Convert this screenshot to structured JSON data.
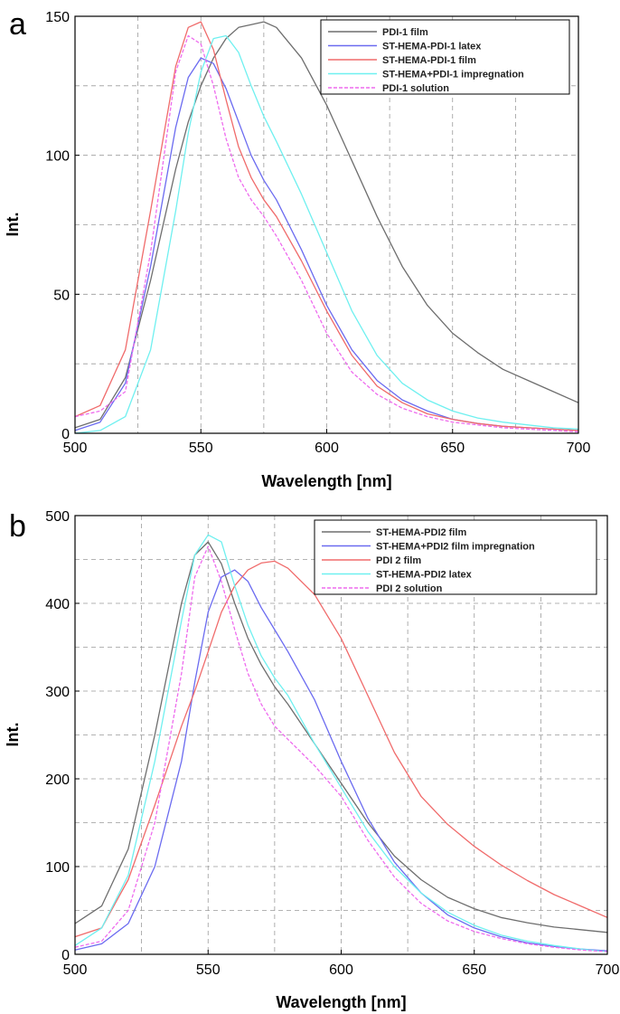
{
  "chart_data": [
    {
      "type": "line",
      "panel_label": "a",
      "xlabel": "Wavelength [nm]",
      "ylabel": "Int.",
      "xlim": [
        500,
        700
      ],
      "ylim": [
        0,
        150
      ],
      "xticks": [
        500,
        550,
        600,
        650,
        700
      ],
      "yticks": [
        0,
        50,
        100,
        150
      ],
      "grid": true,
      "legend_position": "top-right",
      "x": [
        500,
        510,
        520,
        530,
        540,
        545,
        550,
        555,
        560,
        565,
        570,
        575,
        580,
        590,
        600,
        610,
        620,
        630,
        640,
        650,
        660,
        670,
        680,
        690,
        700
      ],
      "series": [
        {
          "name": "PDI-1 film",
          "color": "#6e6e6e",
          "dash": false,
          "values": [
            2,
            5,
            20,
            55,
            95,
            112,
            125,
            135,
            142,
            146,
            147,
            148,
            146,
            135,
            118,
            98,
            78,
            60,
            46,
            36,
            29,
            23,
            19,
            15,
            11
          ]
        },
        {
          "name": "ST-HEMA-PDI-1 latex",
          "color": "#6b6bf0",
          "dash": false,
          "values": [
            1,
            4,
            18,
            60,
            110,
            128,
            135,
            133,
            124,
            112,
            100,
            91,
            84,
            66,
            46,
            30,
            19,
            12,
            8,
            5,
            3.5,
            2.5,
            2,
            1.5,
            1
          ]
        },
        {
          "name": "ST-HEMA-PDI-1 film",
          "color": "#f06b6b",
          "dash": false,
          "values": [
            6,
            10,
            30,
            80,
            132,
            146,
            148,
            138,
            120,
            103,
            92,
            84,
            78,
            62,
            44,
            28,
            17,
            11,
            7,
            5,
            3.5,
            2.5,
            2,
            1.5,
            1
          ]
        },
        {
          "name": "ST-HEMA+PDI-1 impregnation",
          "color": "#6ff0f0",
          "dash": false,
          "values": [
            0,
            1,
            6,
            30,
            80,
            108,
            130,
            142,
            143,
            137,
            125,
            114,
            105,
            86,
            65,
            44,
            28,
            18,
            12,
            8,
            5.5,
            4,
            3,
            2,
            1.5
          ]
        },
        {
          "name": "PDI-1 solution",
          "color": "#ee6bee",
          "dash": true,
          "values": [
            6,
            8,
            15,
            65,
            130,
            143,
            140,
            125,
            106,
            92,
            84,
            78,
            71,
            55,
            36,
            22,
            14,
            9,
            6,
            4,
            3,
            2,
            1.5,
            1,
            0.5
          ]
        }
      ]
    },
    {
      "type": "line",
      "panel_label": "b",
      "xlabel": "Wavelength [nm]",
      "ylabel": "Int.",
      "xlim": [
        500,
        700
      ],
      "ylim": [
        0,
        500
      ],
      "xticks": [
        500,
        550,
        600,
        650,
        700
      ],
      "yticks": [
        0,
        100,
        200,
        300,
        400,
        500
      ],
      "grid": true,
      "legend_position": "top-right",
      "x": [
        500,
        510,
        520,
        530,
        540,
        545,
        550,
        555,
        560,
        565,
        570,
        575,
        580,
        590,
        600,
        610,
        620,
        630,
        640,
        650,
        660,
        670,
        680,
        690,
        700
      ],
      "series": [
        {
          "name": "ST-HEMA-PDI2 film",
          "color": "#6e6e6e",
          "dash": false,
          "values": [
            35,
            55,
            120,
            250,
            400,
            455,
            470,
            445,
            400,
            360,
            330,
            305,
            285,
            240,
            195,
            150,
            112,
            85,
            65,
            52,
            42,
            36,
            31,
            28,
            25
          ]
        },
        {
          "name": "ST-HEMA+PDI2 film impregnation",
          "color": "#6b6bf0",
          "dash": false,
          "values": [
            5,
            12,
            35,
            100,
            220,
            310,
            390,
            430,
            438,
            425,
            395,
            370,
            345,
            290,
            220,
            155,
            105,
            70,
            45,
            30,
            20,
            13,
            9,
            6,
            4
          ]
        },
        {
          "name": "PDI 2 film",
          "color": "#f06b6b",
          "dash": false,
          "values": [
            20,
            30,
            85,
            170,
            260,
            300,
            345,
            390,
            420,
            438,
            446,
            448,
            440,
            410,
            360,
            295,
            230,
            180,
            148,
            123,
            102,
            84,
            68,
            55,
            42
          ]
        },
        {
          "name": "ST-HEMA-PDI2 latex",
          "color": "#6ff0f0",
          "dash": false,
          "values": [
            10,
            30,
            90,
            220,
            380,
            455,
            478,
            470,
            420,
            375,
            340,
            315,
            295,
            240,
            190,
            140,
            100,
            70,
            48,
            33,
            22,
            15,
            10,
            6,
            3
          ]
        },
        {
          "name": "PDI 2 solution",
          "color": "#ee6bee",
          "dash": true,
          "values": [
            8,
            15,
            50,
            150,
            320,
            430,
            465,
            425,
            370,
            320,
            285,
            260,
            245,
            215,
            180,
            130,
            88,
            58,
            38,
            26,
            18,
            12,
            8,
            5,
            3
          ]
        }
      ]
    }
  ]
}
